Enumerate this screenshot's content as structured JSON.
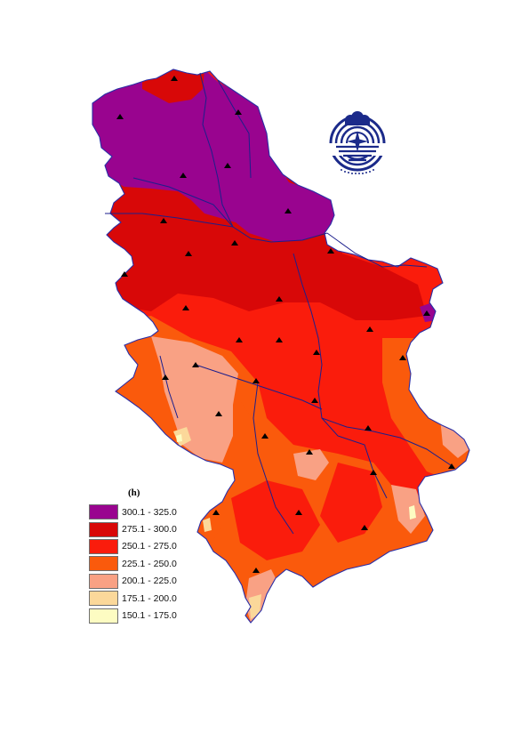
{
  "legend": {
    "unit": "(h)",
    "classes": [
      {
        "label": "300.1 - 325.0",
        "color": "#99048f"
      },
      {
        "label": "275.1 - 300.0",
        "color": "#d80808"
      },
      {
        "label": "250.1 - 275.0",
        "color": "#fa1c0c"
      },
      {
        "label": "225.1 - 250.0",
        "color": "#fa5a0c"
      },
      {
        "label": "200.1 - 225.0",
        "color": "#f9a184"
      },
      {
        "label": "175.1 - 200.0",
        "color": "#fbd89a"
      },
      {
        "label": "150.1 - 175.0",
        "color": "#fdfcc2"
      }
    ]
  },
  "map": {
    "border_color": "#2a2ea6",
    "river_color": "#1c1f8c",
    "station_marker": "triangle-icon",
    "logo": "institute-emblem-icon"
  }
}
